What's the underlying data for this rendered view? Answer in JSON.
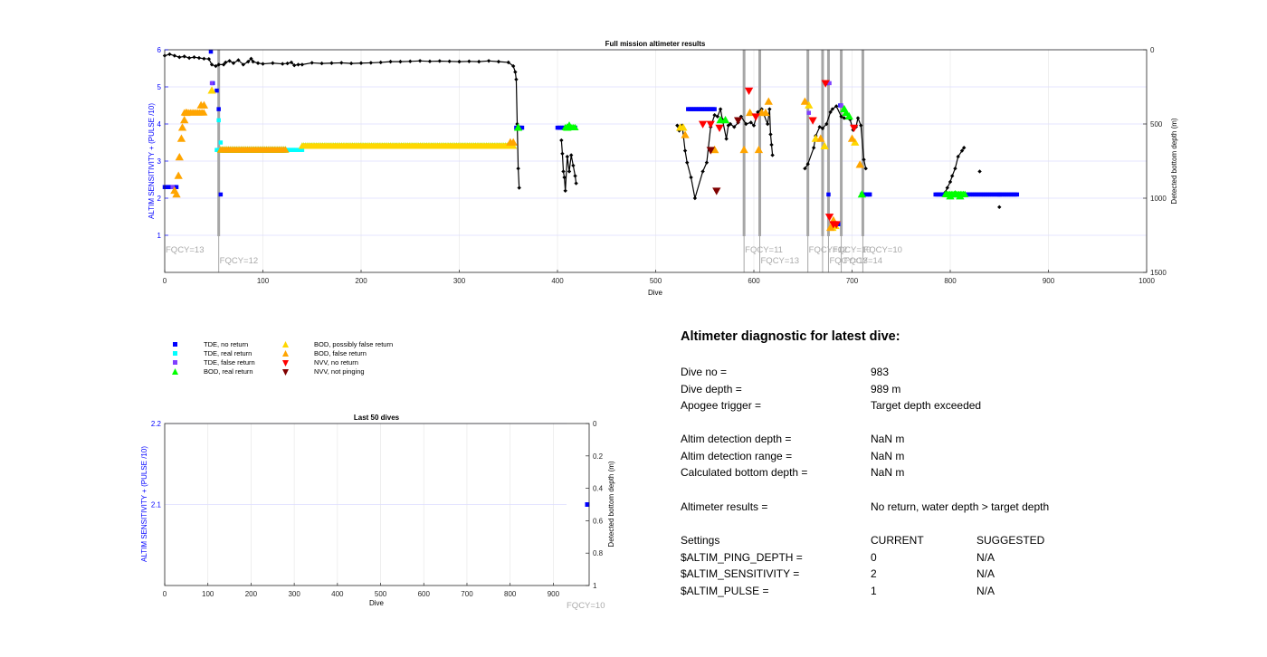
{
  "main": {
    "title": "Full mission altimeter results",
    "xlabel": "Dive",
    "ylabel_left": "ALTIM SENSITIVITY + (PULSE /10)",
    "ylabel_right": "Detected bottom depth (m)",
    "fqcy_labels": [
      "FQCY=13",
      "FQCY=12",
      "FQCY=11",
      "FQCY=13",
      "FQCY=12",
      "FQCY=10",
      "FQCY=13",
      "FQCY=14",
      "FQCY=10"
    ]
  },
  "last50": {
    "title": "Last 50 dives",
    "xlabel": "Dive",
    "ylabel_left": "ALTIM SENSITIVITY + (PULSE /10)",
    "ylabel_right": "Detected bottom depth (m)",
    "fqcy_label": "FQCY=10"
  },
  "legend": {
    "items": [
      {
        "label": "TDE, no return",
        "marker": "square",
        "color": "#0000ff"
      },
      {
        "label": "TDE, real return",
        "marker": "square",
        "color": "#00ffff"
      },
      {
        "label": "TDE, false return",
        "marker": "square",
        "color": "#7f3fff"
      },
      {
        "label": "BOD, real return",
        "marker": "triangle-up",
        "color": "#00ff00"
      },
      {
        "label": "BOD, possibly false return",
        "marker": "triangle-up",
        "color": "#ffd700"
      },
      {
        "label": "BOD, false return",
        "marker": "triangle-up",
        "color": "#ffa500"
      },
      {
        "label": "NVV, no return",
        "marker": "triangle-down",
        "color": "#ff0000"
      },
      {
        "label": "NVV, not pinging",
        "marker": "triangle-down",
        "color": "#800000"
      }
    ]
  },
  "diagnostic": {
    "title": "Altimeter diagnostic for latest dive:",
    "rows": [
      {
        "label": "Dive no =",
        "value": "983"
      },
      {
        "label": "Dive depth =",
        "value": "989 m"
      },
      {
        "label": "Apogee trigger =",
        "value": "Target depth exceeded"
      },
      {
        "label": "Altim detection depth =",
        "value": "NaN m"
      },
      {
        "label": "Altim detection range =",
        "value": "NaN m"
      },
      {
        "label": "Calculated bottom depth =",
        "value": "NaN m"
      },
      {
        "label": "Altimeter results =",
        "value": "No return, water depth > target depth"
      }
    ],
    "settings": {
      "header": [
        "Settings",
        "CURRENT",
        "SUGGESTED"
      ],
      "rows": [
        {
          "name": "$ALTIM_PING_DEPTH =",
          "current": "0",
          "suggested": "N/A"
        },
        {
          "name": "$ALTIM_SENSITIVITY =",
          "current": "2",
          "suggested": "N/A"
        },
        {
          "name": "$ALTIM_PULSE =",
          "current": "1",
          "suggested": "N/A"
        }
      ]
    }
  },
  "chart_data": [
    {
      "type": "scatter",
      "title": "Full mission altimeter results",
      "xlabel": "Dive",
      "ylabel": "ALTIM SENSITIVITY + (PULSE /10)",
      "ylabel_right": "Detected bottom depth (m)",
      "xlim": [
        0,
        1000
      ],
      "ylim": [
        0,
        6
      ],
      "ylim_right": [
        1500,
        0
      ],
      "xticks": [
        0,
        100,
        200,
        300,
        400,
        500,
        600,
        700,
        800,
        900,
        1000
      ],
      "yticks": [
        1,
        2,
        3,
        4,
        5,
        6
      ],
      "yticks_right": [
        0,
        500,
        1000,
        1500
      ],
      "grid": true,
      "fqcy_changes": [
        {
          "dive": 0,
          "label": "FQCY=13"
        },
        {
          "dive": 55,
          "label": "FQCY=12"
        },
        {
          "dive": 590,
          "label": "FQCY=11"
        },
        {
          "dive": 606,
          "label": "FQCY=13"
        },
        {
          "dive": 655,
          "label": "FQCY=12"
        },
        {
          "dive": 670,
          "label": "FQCY=10"
        },
        {
          "dive": 676,
          "label": "FQCY=13"
        },
        {
          "dive": 689,
          "label": "FQCY=14"
        },
        {
          "dive": 711,
          "label": "FQCY=10"
        }
      ],
      "series": [
        {
          "name": "TDE, no return",
          "marker": "square",
          "color": "#0000ff",
          "segments": [
            [
              0,
              2.3,
              12,
              2.3
            ],
            [
              358,
              3.9,
              364,
              3.9
            ],
            [
              400,
              3.9,
              418,
              3.9
            ],
            [
              533,
              4.4,
              560,
              4.4
            ],
            [
              710,
              2.1,
              718,
              2.1
            ],
            [
              785,
              2.1,
              868,
              2.1
            ]
          ],
          "points": [
            [
              47,
              5.95
            ],
            [
              49,
              5.1
            ],
            [
              53,
              4.9
            ],
            [
              55,
              4.4
            ],
            [
              57,
              2.1
            ],
            [
              674,
              5.1
            ],
            [
              676,
              2.1
            ],
            [
              686,
              1.3
            ],
            [
              688,
              4.5
            ],
            [
              718,
              2.1
            ],
            [
              850,
              2.1
            ]
          ]
        },
        {
          "name": "TDE, real return",
          "marker": "square",
          "color": "#00ffff",
          "segments": [
            [
              53,
              3.3,
              56,
              3.3
            ],
            [
              123,
              3.3,
              140,
              3.3
            ]
          ],
          "points": [
            [
              55,
              4.1
            ],
            [
              57,
              3.5
            ],
            [
              126,
              3.3
            ],
            [
              131,
              3.3
            ]
          ]
        },
        {
          "name": "TDE, false return",
          "marker": "square",
          "color": "#7f3fff",
          "segments": [],
          "points": [
            [
              8,
              2.3
            ],
            [
              48,
              5.1
            ],
            [
              656,
              4.3
            ],
            [
              677,
              5.1
            ],
            [
              689,
              4.5
            ]
          ]
        },
        {
          "name": "BOD, real return",
          "marker": "triangle-up",
          "color": "#00ff00",
          "segments": [
            [
              57,
              3.3,
              123,
              3.3
            ],
            [
              140,
              3.4,
              355,
              3.4
            ],
            [
              408,
              3.9,
              418,
              3.9
            ],
            [
              795,
              2.1,
              815,
              2.1
            ]
          ],
          "points": [
            [
              360,
              3.9
            ],
            [
              410,
              3.9
            ],
            [
              412,
              3.95
            ],
            [
              566,
              4.1
            ],
            [
              571,
              4.1
            ],
            [
              692,
              4.4
            ],
            [
              694,
              4.3
            ],
            [
              697,
              4.2
            ],
            [
              710,
              2.1
            ],
            [
              800,
              2.05
            ],
            [
              805,
              2.1
            ],
            [
              810,
              2.05
            ]
          ]
        },
        {
          "name": "BOD, possibly false return",
          "marker": "triangle-up",
          "color": "#ffd700",
          "segments": [
            [
              140,
              3.4,
              355,
              3.4
            ]
          ],
          "points": [
            [
              48,
              4.9
            ],
            [
              525,
              3.9
            ],
            [
              528,
              3.9
            ],
            [
              560,
              3.3
            ],
            [
              656,
              4.5
            ],
            [
              663,
              3.6
            ],
            [
              672,
              3.4
            ],
            [
              680,
              1.2
            ],
            [
              683,
              1.25
            ],
            [
              703,
              3.5
            ]
          ]
        },
        {
          "name": "BOD, false return",
          "marker": "triangle-up",
          "color": "#ffa500",
          "segments": [
            [
              20,
              4.3,
              40,
              4.3
            ],
            [
              57,
              3.3,
              123,
              3.3
            ]
          ],
          "points": [
            [
              10,
              2.2
            ],
            [
              12,
              2.1
            ],
            [
              14,
              2.6
            ],
            [
              15,
              3.1
            ],
            [
              17,
              3.6
            ],
            [
              18,
              3.9
            ],
            [
              20,
              4.1
            ],
            [
              22,
              4.3
            ],
            [
              37,
              4.5
            ],
            [
              40,
              4.5
            ],
            [
              352,
              3.5
            ],
            [
              355,
              3.5
            ],
            [
              530,
              3.7
            ],
            [
              560,
              3.3
            ],
            [
              590,
              3.3
            ],
            [
              596,
              4.3
            ],
            [
              605,
              3.3
            ],
            [
              608,
              4.3
            ],
            [
              612,
              4.3
            ],
            [
              615,
              4.6
            ],
            [
              652,
              4.6
            ],
            [
              668,
              3.6
            ],
            [
              678,
              1.2
            ],
            [
              681,
              1.4
            ],
            [
              700,
              3.6
            ],
            [
              708,
              2.9
            ]
          ]
        },
        {
          "name": "NVV, no return",
          "marker": "triangle-down",
          "color": "#ff0000",
          "segments": [],
          "points": [
            [
              548,
              4.0
            ],
            [
              556,
              4.0
            ],
            [
              565,
              3.9
            ],
            [
              595,
              4.9
            ],
            [
              602,
              4.2
            ],
            [
              660,
              4.1
            ],
            [
              673,
              5.1
            ],
            [
              677,
              1.5
            ],
            [
              681,
              1.3
            ],
            [
              684,
              1.3
            ],
            [
              702,
              3.9
            ]
          ]
        },
        {
          "name": "NVV, not pinging",
          "marker": "triangle-down",
          "color": "#800000",
          "segments": [],
          "points": [
            [
              556,
              3.3
            ],
            [
              562,
              2.2
            ],
            [
              584,
              4.1
            ]
          ]
        }
      ],
      "bottom_depth": [
        [
          0,
          40
        ],
        [
          5,
          30
        ],
        [
          10,
          40
        ],
        [
          15,
          50
        ],
        [
          20,
          45
        ],
        [
          25,
          55
        ],
        [
          30,
          50
        ],
        [
          35,
          55
        ],
        [
          40,
          60
        ],
        [
          45,
          62
        ],
        [
          48,
          100
        ],
        [
          52,
          110
        ],
        [
          55,
          100
        ],
        [
          60,
          100
        ],
        [
          62,
          85
        ],
        [
          66,
          75
        ],
        [
          70,
          90
        ],
        [
          75,
          70
        ],
        [
          80,
          100
        ],
        [
          85,
          80
        ],
        [
          88,
          60
        ],
        [
          90,
          80
        ],
        [
          95,
          90
        ],
        [
          100,
          95
        ],
        [
          110,
          90
        ],
        [
          120,
          95
        ],
        [
          125,
          92
        ],
        [
          129,
          85
        ],
        [
          132,
          105
        ],
        [
          136,
          100
        ],
        [
          140,
          100
        ],
        [
          150,
          88
        ],
        [
          160,
          92
        ],
        [
          170,
          90
        ],
        [
          180,
          88
        ],
        [
          190,
          92
        ],
        [
          200,
          90
        ],
        [
          210,
          88
        ],
        [
          220,
          85
        ],
        [
          230,
          80
        ],
        [
          240,
          80
        ],
        [
          250,
          78
        ],
        [
          260,
          75
        ],
        [
          270,
          78
        ],
        [
          280,
          76
        ],
        [
          290,
          78
        ],
        [
          300,
          80
        ],
        [
          310,
          78
        ],
        [
          320,
          80
        ],
        [
          330,
          75
        ],
        [
          340,
          80
        ],
        [
          350,
          85
        ],
        [
          355,
          110
        ],
        [
          357,
          150
        ],
        [
          358,
          200
        ],
        [
          359,
          500
        ],
        [
          360,
          800
        ],
        [
          361,
          930
        ],
        [
          404,
          610
        ],
        [
          405,
          700
        ],
        [
          406,
          820
        ],
        [
          407,
          860
        ],
        [
          408,
          950
        ],
        [
          410,
          720
        ],
        [
          412,
          820
        ],
        [
          414,
          710
        ],
        [
          416,
          780
        ],
        [
          418,
          850
        ],
        [
          419,
          900
        ],
        [
          522,
          510
        ],
        [
          524,
          545
        ],
        [
          527,
          510
        ],
        [
          530,
          680
        ],
        [
          532,
          760
        ],
        [
          536,
          860
        ],
        [
          540,
          1000
        ],
        [
          548,
          820
        ],
        [
          552,
          760
        ],
        [
          556,
          520
        ],
        [
          560,
          440
        ],
        [
          563,
          450
        ],
        [
          566,
          400
        ],
        [
          568,
          470
        ],
        [
          572,
          600
        ],
        [
          574,
          510
        ],
        [
          576,
          500
        ],
        [
          580,
          520
        ],
        [
          584,
          490
        ],
        [
          587,
          450
        ],
        [
          592,
          500
        ],
        [
          597,
          490
        ],
        [
          600,
          510
        ],
        [
          604,
          420
        ],
        [
          608,
          400
        ],
        [
          614,
          500
        ],
        [
          616,
          400
        ],
        [
          617,
          570
        ],
        [
          618,
          640
        ],
        [
          619,
          710
        ],
        [
          652,
          800
        ],
        [
          655,
          770
        ],
        [
          661,
          660
        ],
        [
          663,
          580
        ],
        [
          667,
          520
        ],
        [
          670,
          530
        ],
        [
          674,
          500
        ],
        [
          678,
          420
        ],
        [
          680,
          400
        ],
        [
          684,
          380
        ],
        [
          689,
          450
        ],
        [
          692,
          460
        ],
        [
          698,
          470
        ],
        [
          701,
          540
        ],
        [
          704,
          520
        ],
        [
          706,
          460
        ],
        [
          709,
          510
        ],
        [
          712,
          740
        ],
        [
          714,
          800
        ],
        [
          795,
          960
        ],
        [
          797,
          930
        ],
        [
          800,
          890
        ],
        [
          802,
          850
        ],
        [
          805,
          800
        ],
        [
          808,
          720
        ],
        [
          812,
          680
        ],
        [
          814,
          660
        ],
        [
          830,
          820
        ],
        [
          850,
          1060
        ]
      ]
    },
    {
      "type": "scatter",
      "title": "Last 50 dives",
      "xlabel": "Dive",
      "ylabel": "ALTIM SENSITIVITY + (PULSE /10)",
      "ylabel_right": "Detected bottom depth (m)",
      "xlim": [
        0,
        983
      ],
      "ylim": [
        2.0,
        2.2
      ],
      "ylim_right": [
        1,
        0
      ],
      "xticks": [
        0,
        100,
        200,
        300,
        400,
        500,
        600,
        700,
        800,
        900
      ],
      "yticks": [
        2.1,
        2.2
      ],
      "yticks_right": [
        0,
        0.2,
        0.4,
        0.6,
        0.8,
        1
      ],
      "grid": true,
      "points": [
        {
          "x": 983,
          "y": 2.1,
          "series": "TDE, no return"
        }
      ],
      "fqcy_label": "FQCY=10"
    }
  ]
}
